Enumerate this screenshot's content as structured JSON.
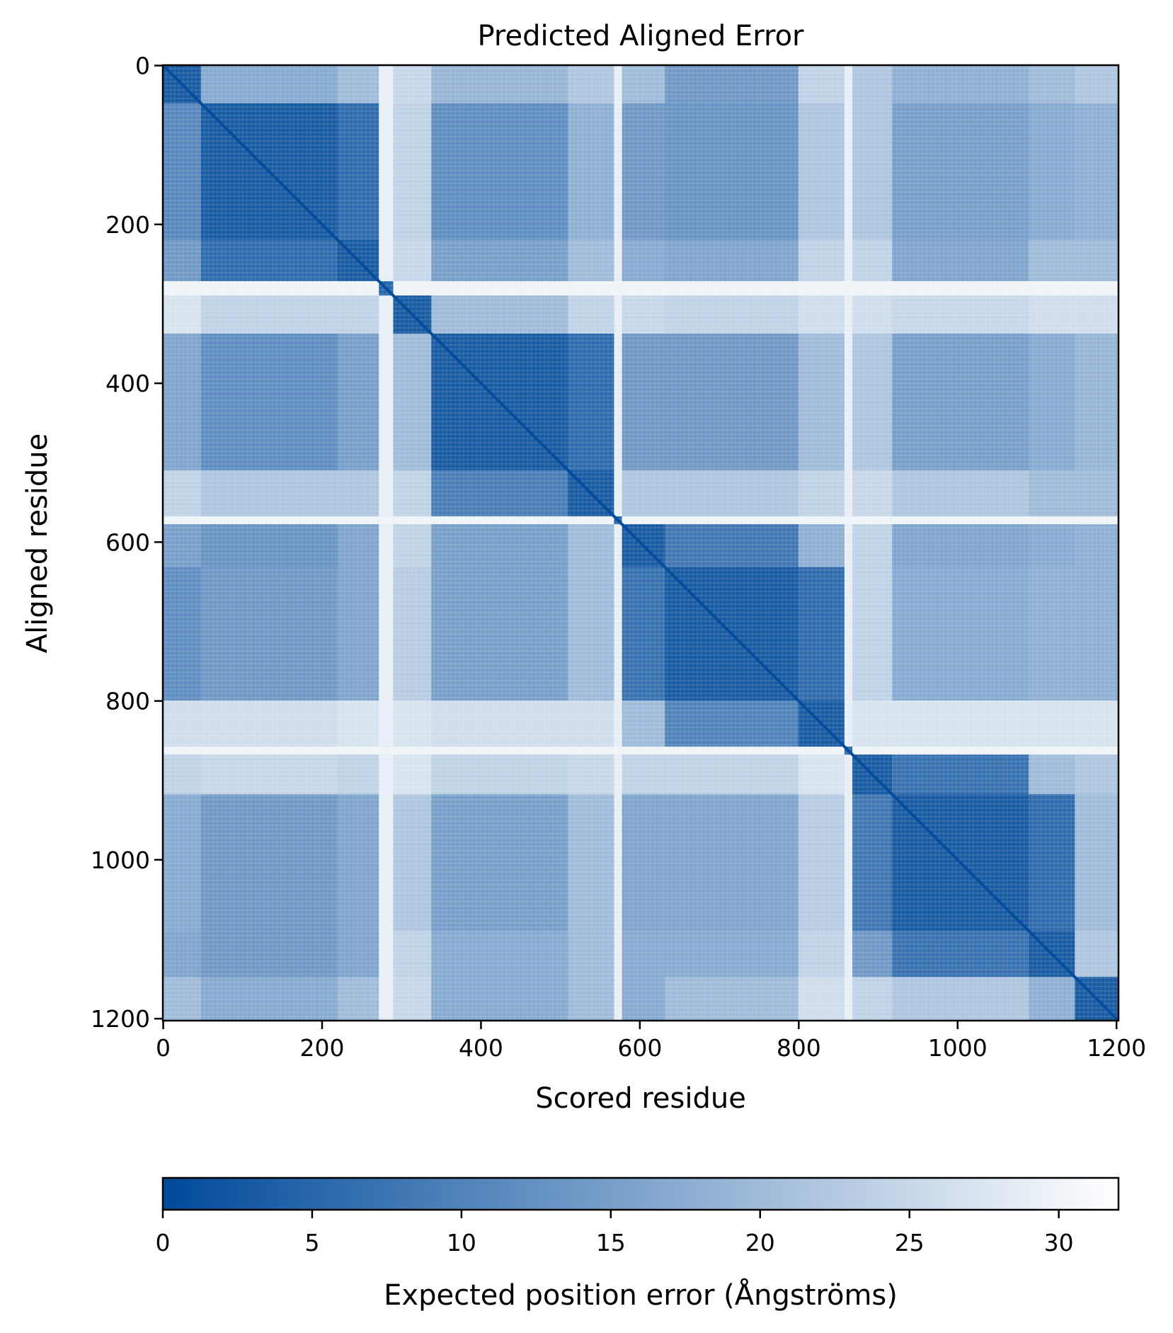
{
  "chart_data": {
    "type": "heatmap",
    "title": "Predicted Aligned Error",
    "xlabel": "Scored residue",
    "ylabel": "Aligned residue",
    "n_residues": 1203,
    "xlim": [
      0,
      1203
    ],
    "ylim": [
      1203,
      0
    ],
    "xticks": [
      0,
      200,
      400,
      600,
      800,
      1000,
      1200
    ],
    "yticks": [
      0,
      200,
      400,
      600,
      800,
      1000,
      1200
    ],
    "colorbar": {
      "label": "Expected position error (Ångströms)",
      "range": [
        0,
        32
      ],
      "ticks": [
        0,
        5,
        10,
        15,
        20,
        25,
        30
      ],
      "color_low": "#004a9a",
      "color_high": "#ffffff",
      "placement": "bottom"
    },
    "segments": [
      [
        0,
        48
      ],
      [
        48,
        220
      ],
      [
        220,
        272
      ],
      [
        272,
        290
      ],
      [
        290,
        338
      ],
      [
        338,
        510
      ],
      [
        510,
        568
      ],
      [
        568,
        578
      ],
      [
        578,
        632
      ],
      [
        632,
        800
      ],
      [
        800,
        858
      ],
      [
        858,
        868
      ],
      [
        868,
        918
      ],
      [
        918,
        1090
      ],
      [
        1090,
        1148
      ],
      [
        1148,
        1203
      ]
    ],
    "block_mean_pae": [
      [
        3,
        17,
        20,
        29,
        25,
        19,
        22,
        29,
        20,
        14,
        24,
        29,
        22,
        18,
        20,
        22
      ],
      [
        11,
        3,
        6,
        29,
        24,
        12,
        18,
        29,
        14,
        13,
        22,
        29,
        22,
        15,
        17,
        18
      ],
      [
        14,
        6,
        3,
        29,
        25,
        15,
        20,
        29,
        17,
        16,
        24,
        29,
        24,
        16,
        20,
        20
      ],
      [
        30,
        30,
        30,
        5,
        30,
        30,
        30,
        30,
        30,
        30,
        30,
        30,
        30,
        30,
        30,
        30
      ],
      [
        27,
        24,
        24,
        29,
        3,
        20,
        24,
        29,
        25,
        24,
        26,
        29,
        26,
        25,
        26,
        26
      ],
      [
        16,
        12,
        15,
        29,
        20,
        3,
        6,
        29,
        14,
        14,
        20,
        29,
        22,
        15,
        17,
        19
      ],
      [
        24,
        22,
        22,
        29,
        24,
        9,
        3,
        29,
        22,
        22,
        24,
        29,
        25,
        22,
        20,
        20
      ],
      [
        30,
        30,
        30,
        30,
        30,
        30,
        30,
        5,
        30,
        30,
        30,
        30,
        30,
        30,
        30,
        30
      ],
      [
        15,
        13,
        16,
        29,
        24,
        15,
        20,
        29,
        3,
        8,
        18,
        29,
        24,
        16,
        17,
        18
      ],
      [
        12,
        14,
        16,
        29,
        23,
        15,
        20,
        29,
        7,
        3,
        6,
        29,
        24,
        17,
        18,
        18
      ],
      [
        26,
        26,
        27,
        29,
        27,
        26,
        26,
        29,
        20,
        10,
        3,
        29,
        27,
        27,
        27,
        27
      ],
      [
        30,
        30,
        30,
        30,
        30,
        30,
        30,
        30,
        30,
        30,
        30,
        5,
        30,
        30,
        30,
        30
      ],
      [
        24,
        25,
        24,
        29,
        27,
        24,
        25,
        29,
        24,
        24,
        27,
        29,
        3,
        7,
        20,
        22
      ],
      [
        17,
        14,
        16,
        29,
        22,
        15,
        20,
        29,
        16,
        16,
        23,
        29,
        8,
        3,
        6,
        20
      ],
      [
        16,
        14,
        16,
        29,
        24,
        17,
        20,
        29,
        17,
        17,
        24,
        29,
        14,
        7,
        3,
        22
      ],
      [
        20,
        17,
        20,
        29,
        25,
        17,
        20,
        29,
        17,
        20,
        26,
        29,
        24,
        22,
        18,
        3
      ]
    ],
    "diagonal_pae": 0.5
  }
}
